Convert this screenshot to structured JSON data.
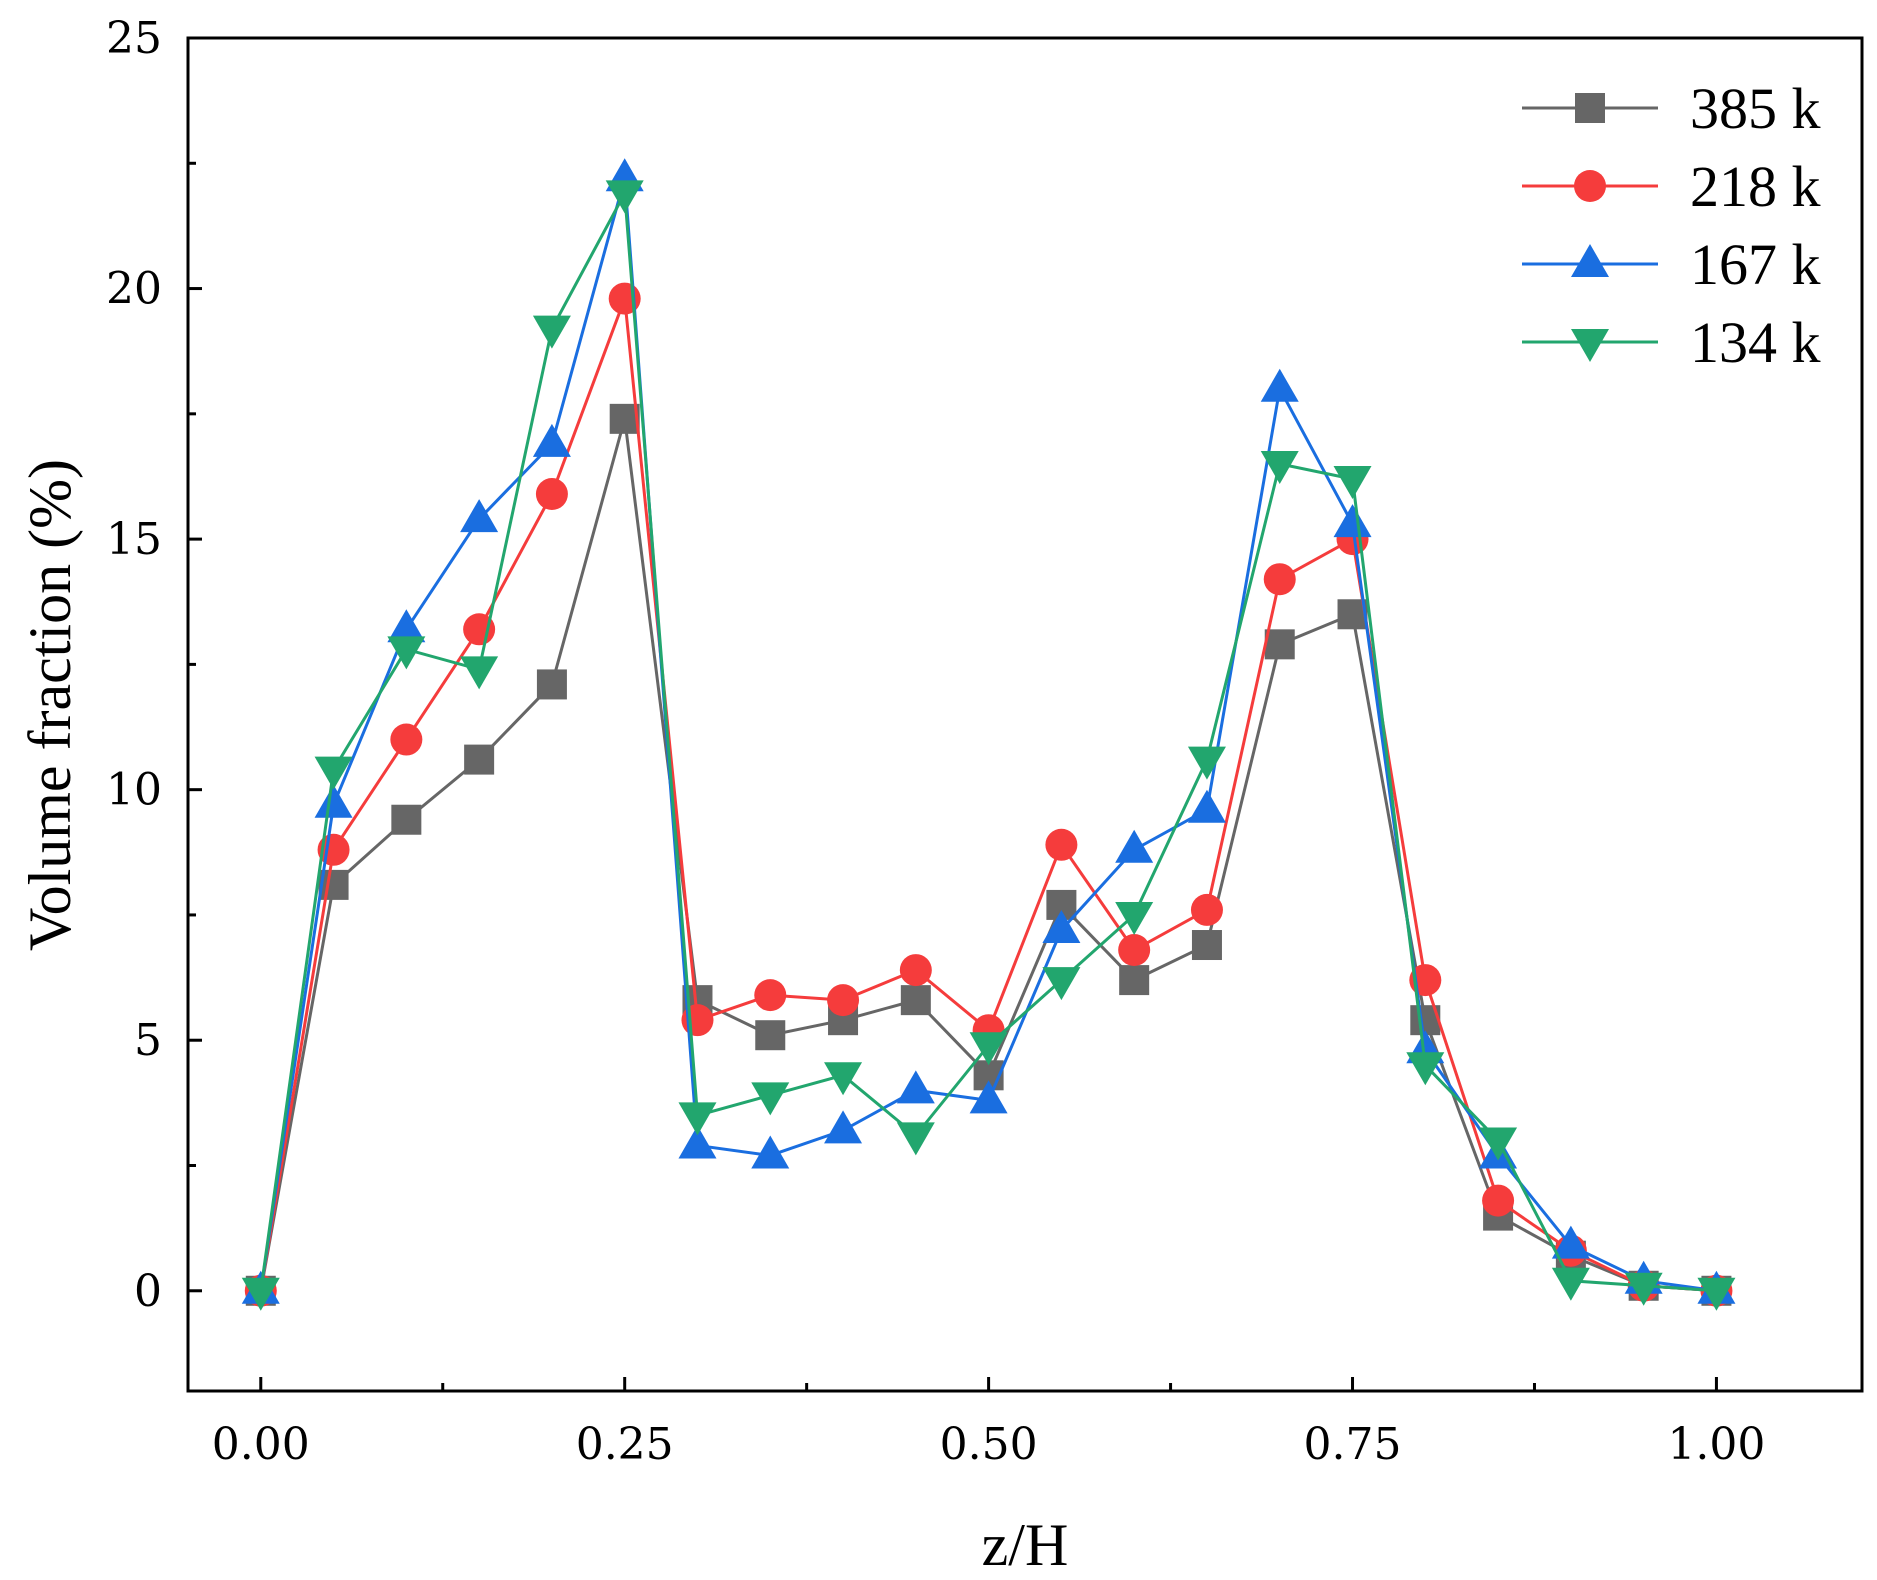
{
  "chart_data": {
    "type": "line",
    "title": "",
    "xlabel": "z/H",
    "ylabel": "Volume fraction (%)",
    "xlim": [
      -0.05,
      1.1
    ],
    "ylim": [
      -2,
      25
    ],
    "xticks": [
      0,
      0.25,
      0.5,
      0.75,
      1.0
    ],
    "xtick_labels": [
      "0.00",
      "0.25",
      "0.50",
      "0.75",
      "1.00"
    ],
    "yticks": [
      0,
      5,
      10,
      15,
      20,
      25
    ],
    "ytick_labels": [
      "0",
      "5",
      "10",
      "15",
      "20",
      "25"
    ],
    "grid": false,
    "legend_position": "top-right",
    "x": [
      0,
      0.05,
      0.1,
      0.15,
      0.2,
      0.25,
      0.3,
      0.35,
      0.4,
      0.45,
      0.5,
      0.55,
      0.6,
      0.65,
      0.7,
      0.75,
      0.8,
      0.85,
      0.9,
      0.95,
      1.0
    ],
    "series": [
      {
        "name": "385 k",
        "color": "#666666",
        "marker": "square",
        "values": [
          0,
          8.1,
          9.4,
          10.6,
          12.1,
          17.4,
          5.8,
          5.1,
          5.4,
          5.8,
          4.3,
          7.7,
          6.2,
          6.9,
          12.9,
          13.5,
          5.4,
          1.5,
          0.7,
          0.1,
          0
        ]
      },
      {
        "name": "218 k",
        "color": "#f53c3c",
        "marker": "circle",
        "values": [
          0,
          8.8,
          11.0,
          13.2,
          15.9,
          19.8,
          5.4,
          5.9,
          5.8,
          6.4,
          5.2,
          8.9,
          6.8,
          7.6,
          14.2,
          15.0,
          6.2,
          1.8,
          0.8,
          0.1,
          0
        ]
      },
      {
        "name": "167 k",
        "color": "#1a6ee0",
        "marker": "triangle-up",
        "values": [
          0,
          9.7,
          13.2,
          15.4,
          16.9,
          22.2,
          2.9,
          2.7,
          3.2,
          4.0,
          3.8,
          7.2,
          8.8,
          9.6,
          18.0,
          15.3,
          4.8,
          2.7,
          0.9,
          0.2,
          0
        ]
      },
      {
        "name": "134 k",
        "color": "#22a66e",
        "marker": "triangle-down",
        "values": [
          0,
          10.4,
          12.8,
          12.4,
          19.2,
          21.9,
          3.5,
          3.9,
          4.3,
          3.1,
          4.9,
          6.2,
          7.5,
          10.6,
          16.5,
          16.2,
          4.5,
          3.0,
          0.2,
          0.1,
          0
        ]
      }
    ]
  }
}
